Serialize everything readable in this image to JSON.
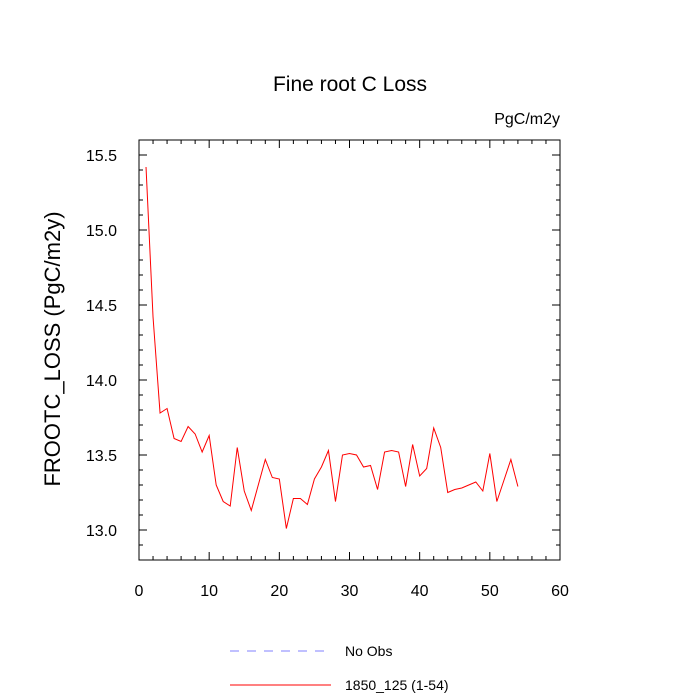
{
  "chart_data": {
    "type": "line",
    "title": "Fine root C Loss",
    "units_label": "PgC/m2y",
    "xlabel": "",
    "ylabel": "FROOTC_LOSS  (PgC/m2y)",
    "xlim": [
      0,
      60
    ],
    "ylim": [
      12.8,
      15.6
    ],
    "x_ticks": [
      0,
      10,
      20,
      30,
      40,
      50,
      60
    ],
    "y_ticks": [
      13.0,
      13.5,
      14.0,
      14.5,
      15.0,
      15.5
    ],
    "x_tick_labels": [
      "0",
      "10",
      "20",
      "30",
      "40",
      "50",
      "60"
    ],
    "y_tick_labels": [
      "13.0",
      "13.5",
      "14.0",
      "14.5",
      "15.0",
      "15.5"
    ],
    "grid": false,
    "legend_position": "bottom",
    "series": [
      {
        "name": "No Obs",
        "color": "#8080ff",
        "style": "dashed",
        "x": [],
        "values": []
      },
      {
        "name": "1850_125 (1-54)",
        "color": "#ff0000",
        "style": "solid",
        "x": [
          1,
          2,
          3,
          4,
          5,
          6,
          7,
          8,
          9,
          10,
          11,
          12,
          13,
          14,
          15,
          16,
          17,
          18,
          19,
          20,
          21,
          22,
          23,
          24,
          25,
          26,
          27,
          28,
          29,
          30,
          31,
          32,
          33,
          34,
          35,
          36,
          37,
          38,
          39,
          40,
          41,
          42,
          43,
          44,
          45,
          46,
          47,
          48,
          49,
          50,
          51,
          52,
          53,
          54
        ],
        "values": [
          15.42,
          14.42,
          13.78,
          13.81,
          13.61,
          13.59,
          13.69,
          13.64,
          13.52,
          13.63,
          13.3,
          13.19,
          13.16,
          13.55,
          13.26,
          13.13,
          13.3,
          13.47,
          13.35,
          13.34,
          13.01,
          13.21,
          13.21,
          13.17,
          13.34,
          13.42,
          13.53,
          13.19,
          13.5,
          13.51,
          13.5,
          13.42,
          13.43,
          13.27,
          13.52,
          13.53,
          13.52,
          13.29,
          13.57,
          13.36,
          13.41,
          13.68,
          13.55,
          13.25,
          13.27,
          13.28,
          13.3,
          13.32,
          13.26,
          13.51,
          13.19,
          13.33,
          13.47,
          13.29
        ]
      }
    ]
  }
}
